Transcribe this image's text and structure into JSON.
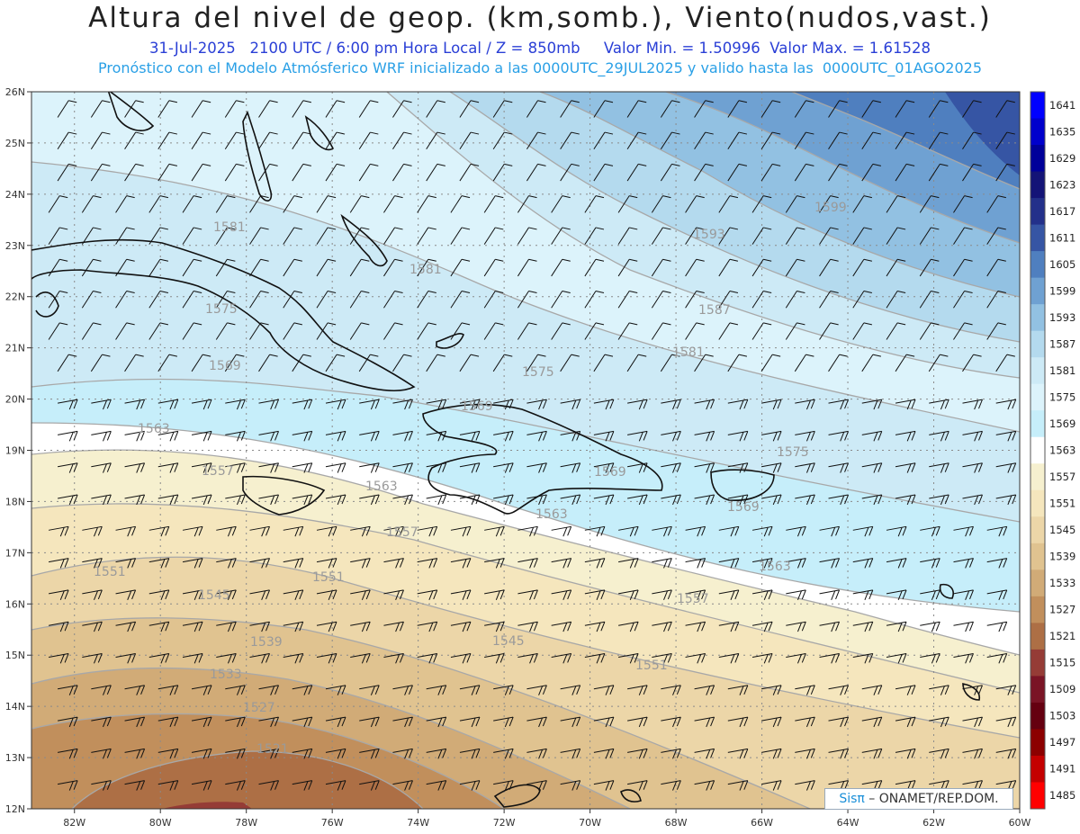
{
  "header": {
    "title": "Altura del nivel de geop. (km,somb.), Viento(nudos,vast.)",
    "date": "31-Jul-2025",
    "time": "2100 UTC / 6:00 pm Hora Local / Z = 850mb",
    "min": "Valor Min. = 1.50996",
    "max": "Valor Max. = 1.61528",
    "forecast": "Pronóstico con el Modelo Atmósferico WRF inicializado a las 0000UTC_29JUL2025 y valido hasta las  0000UTC_01AGO2025"
  },
  "axes": {
    "lon_labels": [
      "82W",
      "80W",
      "78W",
      "76W",
      "74W",
      "72W",
      "70W",
      "68W",
      "66W",
      "64W",
      "62W",
      "60W"
    ],
    "lat_labels": [
      "26N",
      "25N",
      "24N",
      "23N",
      "22N",
      "21N",
      "20N",
      "19N",
      "18N",
      "17N",
      "16N",
      "15N",
      "14N",
      "13N",
      "12N"
    ]
  },
  "colorbar": {
    "levels": [
      "1641",
      "1635",
      "1629",
      "1623",
      "1617",
      "1611",
      "1605",
      "1599",
      "1593",
      "1587",
      "1581",
      "1575",
      "1569",
      "1563",
      "1557",
      "1551",
      "1545",
      "1539",
      "1533",
      "1527",
      "1521",
      "1515",
      "1509",
      "1503",
      "1497",
      "1491",
      "1485"
    ],
    "colors": [
      "#0000ff",
      "#0000cc",
      "#00009a",
      "#141477",
      "#23308a",
      "#3655a4",
      "#4f7fbf",
      "#6fa1d2",
      "#92c1e2",
      "#b4daee",
      "#cdeaf6",
      "#dcf3fb",
      "#c6eefa",
      "#ffffff",
      "#f6f0cf",
      "#f5e6bd",
      "#ecd6a8",
      "#e0c390",
      "#d1ab77",
      "#c18f5c",
      "#ad6f45",
      "#953c36",
      "#7a1425",
      "#650010",
      "#8c0000",
      "#c40000",
      "#ff0000"
    ]
  },
  "contours": [
    {
      "label": "1581"
    },
    {
      "label": "1581"
    },
    {
      "label": "1593"
    },
    {
      "label": "1599"
    },
    {
      "label": "1575"
    },
    {
      "label": "1587"
    },
    {
      "label": "1569"
    },
    {
      "label": "1581"
    },
    {
      "label": "1575"
    },
    {
      "label": "1569"
    },
    {
      "label": "1563"
    },
    {
      "label": "1575"
    },
    {
      "label": "1557"
    },
    {
      "label": "1563"
    },
    {
      "label": "1569"
    },
    {
      "label": "1569"
    },
    {
      "label": "1563"
    },
    {
      "label": "1557"
    },
    {
      "label": "1563"
    },
    {
      "label": "1551"
    },
    {
      "label": "1551"
    },
    {
      "label": "1557"
    },
    {
      "label": "1545"
    },
    {
      "label": "1539"
    },
    {
      "label": "1545"
    },
    {
      "label": "1551"
    },
    {
      "label": "1533"
    },
    {
      "label": "1527"
    },
    {
      "label": "1521"
    }
  ],
  "credit": {
    "logo": "Sisπ",
    "text": " – ONAMET/REP.DOM."
  }
}
